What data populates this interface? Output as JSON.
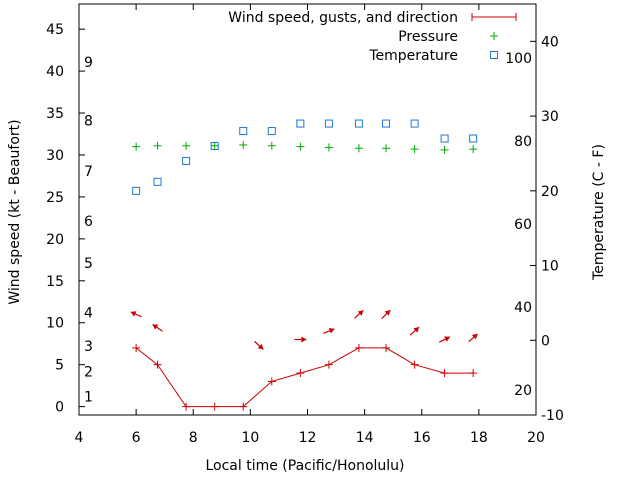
{
  "chart_data": {
    "type": "line",
    "xlabel": "Local time (Pacific/Honolulu)",
    "ylabel_left": "Wind speed (kt - Beaufort)",
    "ylabel_right": "Temperature (C - F)",
    "xlim": [
      4,
      20
    ],
    "ylim_left": [
      -1,
      48
    ],
    "ylim_right": [
      -10,
      45
    ],
    "fahrenheit_axis_ticks": [
      20,
      40,
      60,
      80,
      100
    ],
    "beaufort_labels": [
      {
        "label": "1",
        "wind_kt": 1.2
      },
      {
        "label": "2",
        "wind_kt": 4.2
      },
      {
        "label": "3",
        "wind_kt": 7.2
      },
      {
        "label": "4",
        "wind_kt": 11.2
      },
      {
        "label": "5",
        "wind_kt": 17.1
      },
      {
        "label": "6",
        "wind_kt": 22.1
      },
      {
        "label": "7",
        "wind_kt": 28.1
      },
      {
        "label": "8",
        "wind_kt": 34.1
      },
      {
        "label": "9",
        "wind_kt": 41.1
      }
    ],
    "x_ticks": [
      4,
      6,
      8,
      10,
      12,
      14,
      16,
      18,
      20
    ],
    "y_left_ticks": [
      0,
      5,
      10,
      15,
      20,
      25,
      30,
      35,
      40,
      45
    ],
    "y_right_ticks": [
      -10,
      0,
      10,
      20,
      30,
      40
    ],
    "legend_position": "top-right",
    "series": [
      {
        "name": "Wind speed, gusts, and direction",
        "color": "#cc0000",
        "marker": "plus-line",
        "x": [
          6,
          6.75,
          7.75,
          8.75,
          9.75,
          10.75,
          11.75,
          12.75,
          13.8,
          14.75,
          15.75,
          16.8,
          17.8
        ],
        "y": [
          7,
          5,
          0,
          0,
          0,
          3,
          4,
          5,
          7,
          7,
          5,
          4,
          4
        ],
        "arrows": [
          {
            "x": 6,
            "y": 11,
            "dx": -1,
            "dy": -0.45
          },
          {
            "x": 6.75,
            "y": 9.4,
            "dx": -1,
            "dy": -0.7
          },
          {
            "x": 10.3,
            "y": 7.3,
            "dx": 1,
            "dy": 0.9
          },
          {
            "x": 11.75,
            "y": 8,
            "dx": 1,
            "dy": 0
          },
          {
            "x": 12.75,
            "y": 9,
            "dx": 1,
            "dy": -0.4
          },
          {
            "x": 13.8,
            "y": 11,
            "dx": 1,
            "dy": -0.9
          },
          {
            "x": 14.75,
            "y": 11,
            "dx": 1,
            "dy": -1
          },
          {
            "x": 15.75,
            "y": 9,
            "dx": 1,
            "dy": -0.9
          },
          {
            "x": 16.8,
            "y": 8,
            "dx": 1,
            "dy": -0.5
          },
          {
            "x": 17.8,
            "y": 8.2,
            "dx": 1,
            "dy": -0.9
          }
        ]
      },
      {
        "name": "Pressure",
        "color": "#00aa00",
        "marker": "plus",
        "x": [
          6,
          6.75,
          7.75,
          8.75,
          9.75,
          10.75,
          11.75,
          12.75,
          13.8,
          14.75,
          15.75,
          16.8,
          17.8
        ],
        "y": [
          31,
          31.1,
          31.1,
          31.1,
          31.2,
          31.1,
          31,
          30.9,
          30.8,
          30.8,
          30.7,
          30.6,
          30.7
        ]
      },
      {
        "name": "Temperature",
        "color": "#1e78d2",
        "marker": "square",
        "x": [
          6,
          6.75,
          7.75,
          8.75,
          9.75,
          10.75,
          11.75,
          12.75,
          13.8,
          14.75,
          15.75,
          16.8,
          17.8
        ],
        "y": [
          20,
          21.2,
          24,
          26,
          28,
          28,
          29,
          29,
          29,
          29,
          29,
          27,
          27
        ]
      }
    ]
  }
}
